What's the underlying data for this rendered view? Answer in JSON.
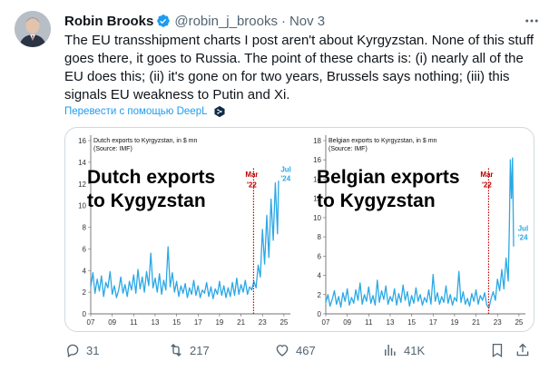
{
  "post": {
    "author_name": "Robin Brooks",
    "handle": "@robin_j_brooks",
    "separator": "·",
    "date": "Nov 3",
    "text": "The EU transshipment charts I post aren't about Kyrgyzstan. None of this stuff goes there, it goes to Russia. The point of these charts is: (i) nearly all of the EU does this; (ii) it's gone on for two years, Brussels says nothing; (iii) this signals EU weakness to Putin and Xi.",
    "translate_label": "Перевести с помощью DeepL"
  },
  "actions": {
    "replies": "31",
    "reposts": "217",
    "likes": "467",
    "views": "41K"
  },
  "colors": {
    "accent": "#1d9bf0",
    "series": "#2aa8e6",
    "marker": "#c00000",
    "verified": "#1d9bf0"
  },
  "chart_data": [
    {
      "type": "line",
      "title": "Dutch exports to Kyrgyzstan, in $ mn",
      "subtitle": "(Source: IMF)",
      "overlay_text": [
        "Dutch exports",
        "to Kygyzstan"
      ],
      "marker_label": [
        "Mar",
        "'22"
      ],
      "end_label": [
        "Jul",
        "'24"
      ],
      "x_ticks": [
        "07",
        "09",
        "11",
        "13",
        "15",
        "17",
        "19",
        "21",
        "23",
        "25"
      ],
      "ylim": [
        0,
        16
      ],
      "y_ticks": [
        0,
        2,
        4,
        6,
        8,
        10,
        12,
        14,
        16
      ],
      "marker_x": 2022.17,
      "series": [
        {
          "values": [
            [
              2007.0,
              2.5
            ],
            [
              2007.2,
              3.8
            ],
            [
              2007.4,
              1.9
            ],
            [
              2007.6,
              3.2
            ],
            [
              2007.8,
              2.1
            ],
            [
              2008.0,
              3.5
            ],
            [
              2008.2,
              1.6
            ],
            [
              2008.4,
              2.9
            ],
            [
              2008.6,
              2.4
            ],
            [
              2008.8,
              3.9
            ],
            [
              2009.0,
              1.8
            ],
            [
              2009.2,
              2.6
            ],
            [
              2009.4,
              1.5
            ],
            [
              2009.6,
              2.2
            ],
            [
              2009.8,
              3.4
            ],
            [
              2010.0,
              1.9
            ],
            [
              2010.2,
              2.7
            ],
            [
              2010.4,
              1.6
            ],
            [
              2010.6,
              3.0
            ],
            [
              2010.8,
              2.2
            ],
            [
              2011.0,
              3.6
            ],
            [
              2011.2,
              1.9
            ],
            [
              2011.4,
              4.1
            ],
            [
              2011.6,
              2.3
            ],
            [
              2011.8,
              3.4
            ],
            [
              2012.0,
              2.0
            ],
            [
              2012.2,
              3.9
            ],
            [
              2012.4,
              2.6
            ],
            [
              2012.6,
              5.6
            ],
            [
              2012.8,
              2.4
            ],
            [
              2013.0,
              3.3
            ],
            [
              2013.2,
              2.0
            ],
            [
              2013.4,
              3.7
            ],
            [
              2013.6,
              1.8
            ],
            [
              2013.8,
              3.1
            ],
            [
              2014.0,
              2.2
            ],
            [
              2014.2,
              6.2
            ],
            [
              2014.4,
              2.5
            ],
            [
              2014.6,
              3.8
            ],
            [
              2014.8,
              2.0
            ],
            [
              2015.0,
              3.0
            ],
            [
              2015.2,
              1.6
            ],
            [
              2015.4,
              2.6
            ],
            [
              2015.6,
              1.9
            ],
            [
              2015.8,
              2.8
            ],
            [
              2016.0,
              1.5
            ],
            [
              2016.2,
              2.4
            ],
            [
              2016.4,
              1.8
            ],
            [
              2016.6,
              3.1
            ],
            [
              2016.8,
              1.7
            ],
            [
              2017.0,
              2.6
            ],
            [
              2017.2,
              1.5
            ],
            [
              2017.4,
              2.2
            ],
            [
              2017.6,
              1.9
            ],
            [
              2017.8,
              2.9
            ],
            [
              2018.0,
              1.6
            ],
            [
              2018.2,
              2.5
            ],
            [
              2018.4,
              1.4
            ],
            [
              2018.6,
              2.3
            ],
            [
              2018.8,
              1.8
            ],
            [
              2019.0,
              3.0
            ],
            [
              2019.2,
              1.7
            ],
            [
              2019.4,
              2.6
            ],
            [
              2019.6,
              1.5
            ],
            [
              2019.8,
              2.4
            ],
            [
              2020.0,
              1.6
            ],
            [
              2020.2,
              2.9
            ],
            [
              2020.4,
              1.7
            ],
            [
              2020.6,
              3.3
            ],
            [
              2020.8,
              1.8
            ],
            [
              2021.0,
              2.7
            ],
            [
              2021.2,
              2.0
            ],
            [
              2021.4,
              3.1
            ],
            [
              2021.6,
              1.8
            ],
            [
              2021.8,
              2.5
            ],
            [
              2022.0,
              2.2
            ],
            [
              2022.2,
              3.0
            ],
            [
              2022.4,
              2.4
            ],
            [
              2022.6,
              4.5
            ],
            [
              2022.8,
              3.4
            ],
            [
              2023.0,
              7.8
            ],
            [
              2023.2,
              4.6
            ],
            [
              2023.4,
              9.1
            ],
            [
              2023.6,
              5.2
            ],
            [
              2023.8,
              10.6
            ],
            [
              2024.0,
              6.8
            ],
            [
              2024.2,
              12.1
            ],
            [
              2024.4,
              7.4
            ],
            [
              2024.5,
              12.3
            ]
          ]
        }
      ]
    },
    {
      "type": "line",
      "title": "Belgian exports to Kyrgyzstan, in $ mn",
      "subtitle": "(Source: IMF)",
      "overlay_text": [
        "Belgian exports",
        "to Kygyzstan"
      ],
      "marker_label": [
        "Mar",
        "'22"
      ],
      "end_label": [
        "Jul",
        "'24"
      ],
      "x_ticks": [
        "07",
        "09",
        "11",
        "13",
        "15",
        "17",
        "19",
        "21",
        "23",
        "25"
      ],
      "ylim": [
        0,
        18
      ],
      "y_ticks": [
        0,
        2,
        4,
        6,
        8,
        10,
        12,
        14,
        16,
        18
      ],
      "marker_x": 2022.17,
      "series": [
        {
          "values": [
            [
              2007.0,
              1.2
            ],
            [
              2007.2,
              2.0
            ],
            [
              2007.4,
              0.8
            ],
            [
              2007.6,
              1.5
            ],
            [
              2007.8,
              2.4
            ],
            [
              2008.0,
              1.0
            ],
            [
              2008.2,
              1.8
            ],
            [
              2008.4,
              0.7
            ],
            [
              2008.6,
              2.2
            ],
            [
              2008.8,
              1.3
            ],
            [
              2009.0,
              2.6
            ],
            [
              2009.2,
              0.9
            ],
            [
              2009.4,
              1.7
            ],
            [
              2009.6,
              1.1
            ],
            [
              2009.8,
              2.5
            ],
            [
              2010.0,
              1.4
            ],
            [
              2010.2,
              3.2
            ],
            [
              2010.4,
              1.0
            ],
            [
              2010.6,
              2.0
            ],
            [
              2010.8,
              1.3
            ],
            [
              2011.0,
              2.8
            ],
            [
              2011.2,
              1.1
            ],
            [
              2011.4,
              1.9
            ],
            [
              2011.6,
              0.9
            ],
            [
              2011.8,
              3.5
            ],
            [
              2012.0,
              1.2
            ],
            [
              2012.2,
              2.4
            ],
            [
              2012.4,
              1.5
            ],
            [
              2012.6,
              2.9
            ],
            [
              2012.8,
              1.0
            ],
            [
              2013.0,
              1.8
            ],
            [
              2013.2,
              1.3
            ],
            [
              2013.4,
              2.6
            ],
            [
              2013.6,
              0.9
            ],
            [
              2013.8,
              2.1
            ],
            [
              2014.0,
              1.2
            ],
            [
              2014.2,
              3.0
            ],
            [
              2014.4,
              1.4
            ],
            [
              2014.6,
              2.3
            ],
            [
              2014.8,
              0.8
            ],
            [
              2015.0,
              1.9
            ],
            [
              2015.2,
              1.1
            ],
            [
              2015.4,
              2.7
            ],
            [
              2015.6,
              1.3
            ],
            [
              2015.8,
              2.0
            ],
            [
              2016.0,
              0.9
            ],
            [
              2016.2,
              1.7
            ],
            [
              2016.4,
              1.2
            ],
            [
              2016.6,
              2.5
            ],
            [
              2016.8,
              1.0
            ],
            [
              2017.0,
              4.1
            ],
            [
              2017.2,
              1.3
            ],
            [
              2017.4,
              2.2
            ],
            [
              2017.6,
              1.0
            ],
            [
              2017.8,
              1.8
            ],
            [
              2018.0,
              1.2
            ],
            [
              2018.2,
              2.9
            ],
            [
              2018.4,
              1.1
            ],
            [
              2018.6,
              2.0
            ],
            [
              2018.8,
              0.9
            ],
            [
              2019.0,
              1.7
            ],
            [
              2019.2,
              1.3
            ],
            [
              2019.4,
              4.4
            ],
            [
              2019.6,
              1.2
            ],
            [
              2019.8,
              2.3
            ],
            [
              2020.0,
              1.0
            ],
            [
              2020.2,
              1.6
            ],
            [
              2020.4,
              0.8
            ],
            [
              2020.6,
              2.1
            ],
            [
              2020.8,
              1.3
            ],
            [
              2021.0,
              2.5
            ],
            [
              2021.2,
              1.0
            ],
            [
              2021.4,
              1.9
            ],
            [
              2021.6,
              1.4
            ],
            [
              2021.8,
              2.2
            ],
            [
              2022.0,
              0.9
            ],
            [
              2022.2,
              0.6
            ],
            [
              2022.4,
              1.6
            ],
            [
              2022.6,
              2.3
            ],
            [
              2022.8,
              1.4
            ],
            [
              2023.0,
              3.6
            ],
            [
              2023.2,
              2.4
            ],
            [
              2023.4,
              4.6
            ],
            [
              2023.6,
              2.6
            ],
            [
              2023.8,
              5.8
            ],
            [
              2024.0,
              3.4
            ],
            [
              2024.1,
              9.0
            ],
            [
              2024.2,
              16.0
            ],
            [
              2024.3,
              12.0
            ],
            [
              2024.4,
              16.2
            ],
            [
              2024.5,
              7.0
            ]
          ]
        }
      ]
    }
  ]
}
